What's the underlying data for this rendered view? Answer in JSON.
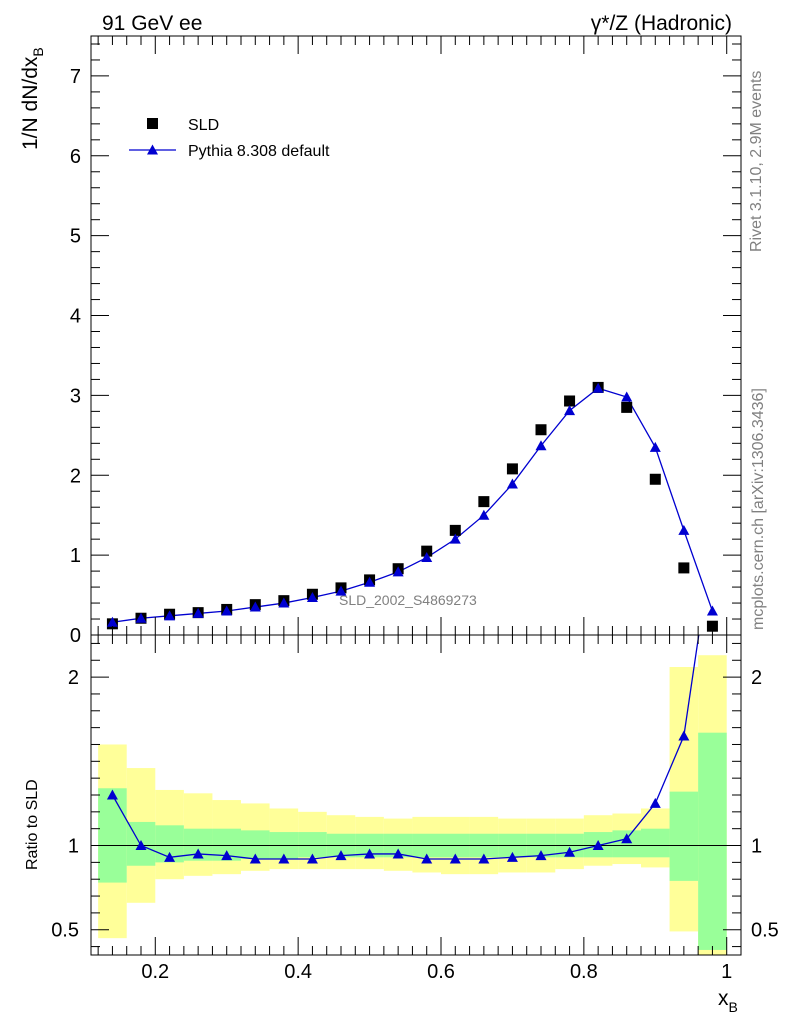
{
  "header": {
    "left": "91 GeV ee",
    "right": "γ*/Z (Hadronic)"
  },
  "side": {
    "rivet": "Rivet 3.1.10,  2.9M events",
    "mcplots": "mcplots.cern.ch [arXiv:1306.3436]"
  },
  "watermark": "SLD_2002_S4869273",
  "chart_data": [
    {
      "type": "scatter",
      "ylabel_main": "1/N dN/dx",
      "ylabel_sub": "B",
      "ylim": [
        0,
        7.5
      ],
      "yticks": [
        "0",
        "1",
        "2",
        "3",
        "4",
        "5",
        "6",
        "7"
      ],
      "legend": {
        "position": "top-left"
      },
      "x": [
        0.14,
        0.18,
        0.22,
        0.26,
        0.3,
        0.34,
        0.38,
        0.42,
        0.46,
        0.5,
        0.54,
        0.58,
        0.62,
        0.66,
        0.7,
        0.74,
        0.78,
        0.82,
        0.86,
        0.9,
        0.94,
        0.98
      ],
      "series": [
        {
          "name": "SLD",
          "color": "#000000",
          "marker": "square",
          "values": [
            0.14,
            0.21,
            0.26,
            0.28,
            0.32,
            0.38,
            0.43,
            0.51,
            0.59,
            0.69,
            0.83,
            1.05,
            1.31,
            1.67,
            2.08,
            2.57,
            2.93,
            3.1,
            2.85,
            1.95,
            0.84,
            0.11
          ]
        },
        {
          "name": "Pythia 8.308 default",
          "color": "#0000d0",
          "marker": "triangle",
          "values": [
            0.16,
            0.21,
            0.24,
            0.27,
            0.3,
            0.35,
            0.4,
            0.47,
            0.55,
            0.66,
            0.79,
            0.97,
            1.2,
            1.5,
            1.89,
            2.37,
            2.81,
            3.09,
            2.98,
            2.35,
            1.31,
            0.3
          ]
        }
      ]
    },
    {
      "type": "line",
      "ylabel": "Ratio to SLD",
      "xlabel_main": "x",
      "xlabel_sub": "B",
      "ylim": [
        0.35,
        2.25
      ],
      "yticks": [
        "0.5",
        "1",
        "2"
      ],
      "xlim": [
        0.11,
        1.02
      ],
      "xticks": [
        "0.2",
        "0.4",
        "0.6",
        "0.8",
        "1"
      ],
      "reference": 1,
      "x": [
        0.14,
        0.18,
        0.22,
        0.26,
        0.3,
        0.34,
        0.38,
        0.42,
        0.46,
        0.5,
        0.54,
        0.58,
        0.62,
        0.66,
        0.7,
        0.74,
        0.78,
        0.82,
        0.86,
        0.9,
        0.94,
        0.98
      ],
      "ratio": [
        1.3,
        1.0,
        0.93,
        0.95,
        0.94,
        0.92,
        0.92,
        0.92,
        0.94,
        0.95,
        0.95,
        0.92,
        0.92,
        0.92,
        0.93,
        0.94,
        0.96,
        1.0,
        1.04,
        1.25,
        1.65,
        2.8
      ],
      "bands": {
        "edges": [
          0.12,
          0.16,
          0.2,
          0.24,
          0.28,
          0.32,
          0.36,
          0.4,
          0.44,
          0.48,
          0.52,
          0.56,
          0.6,
          0.64,
          0.68,
          0.72,
          0.76,
          0.8,
          0.84,
          0.88,
          0.92,
          0.96,
          1.0
        ],
        "stat_lo": [
          0.78,
          0.88,
          0.9,
          0.91,
          0.91,
          0.92,
          0.92,
          0.93,
          0.93,
          0.93,
          0.93,
          0.93,
          0.93,
          0.93,
          0.93,
          0.93,
          0.93,
          0.93,
          0.93,
          0.93,
          0.79,
          0.38
        ],
        "stat_hi": [
          1.34,
          1.14,
          1.12,
          1.1,
          1.1,
          1.09,
          1.08,
          1.08,
          1.07,
          1.07,
          1.07,
          1.07,
          1.07,
          1.07,
          1.07,
          1.07,
          1.07,
          1.08,
          1.09,
          1.1,
          1.32,
          1.67
        ],
        "sys_lo": [
          0.45,
          0.66,
          0.8,
          0.82,
          0.83,
          0.85,
          0.86,
          0.86,
          0.86,
          0.86,
          0.85,
          0.84,
          0.83,
          0.83,
          0.84,
          0.84,
          0.86,
          0.88,
          0.89,
          0.87,
          0.49,
          0.33
        ],
        "sys_hi": [
          1.6,
          1.46,
          1.33,
          1.31,
          1.27,
          1.25,
          1.22,
          1.2,
          1.18,
          1.17,
          1.16,
          1.17,
          1.17,
          1.17,
          1.16,
          1.16,
          1.16,
          1.18,
          1.19,
          1.22,
          2.06,
          2.13
        ],
        "stat_color": "#99ff99",
        "sys_color": "#ffff99"
      }
    }
  ]
}
